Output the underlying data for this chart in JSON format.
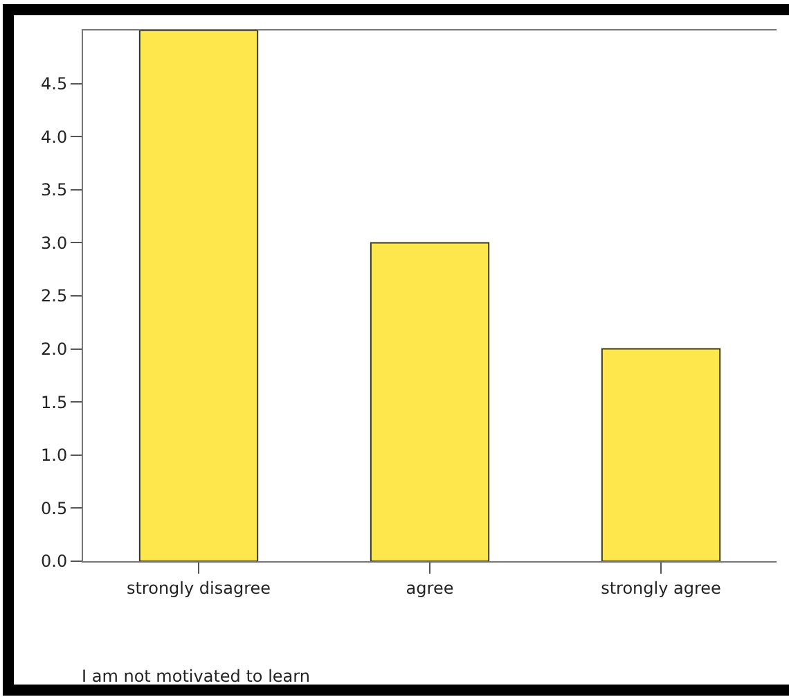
{
  "chart_data": {
    "type": "bar",
    "xlabel": "I am not motivated to learn",
    "categories": [
      "strongly disagree",
      "agree",
      "strongly agree"
    ],
    "values": [
      5,
      3,
      2
    ],
    "color": "#fde74c",
    "ylim": [
      0,
      5
    ],
    "yticks": [
      {
        "value": 0,
        "label": "0.0"
      },
      {
        "value": 0.5,
        "label": "0.5"
      },
      {
        "value": 1,
        "label": "1.0"
      },
      {
        "value": 1.5,
        "label": "1.5"
      },
      {
        "value": 2,
        "label": "2.0"
      },
      {
        "value": 2.5,
        "label": "2.5"
      },
      {
        "value": 3,
        "label": "3.0"
      },
      {
        "value": 3.5,
        "label": "3.5"
      },
      {
        "value": 4,
        "label": "4.0"
      },
      {
        "value": 4.5,
        "label": "4.5"
      }
    ],
    "legend": false
  }
}
